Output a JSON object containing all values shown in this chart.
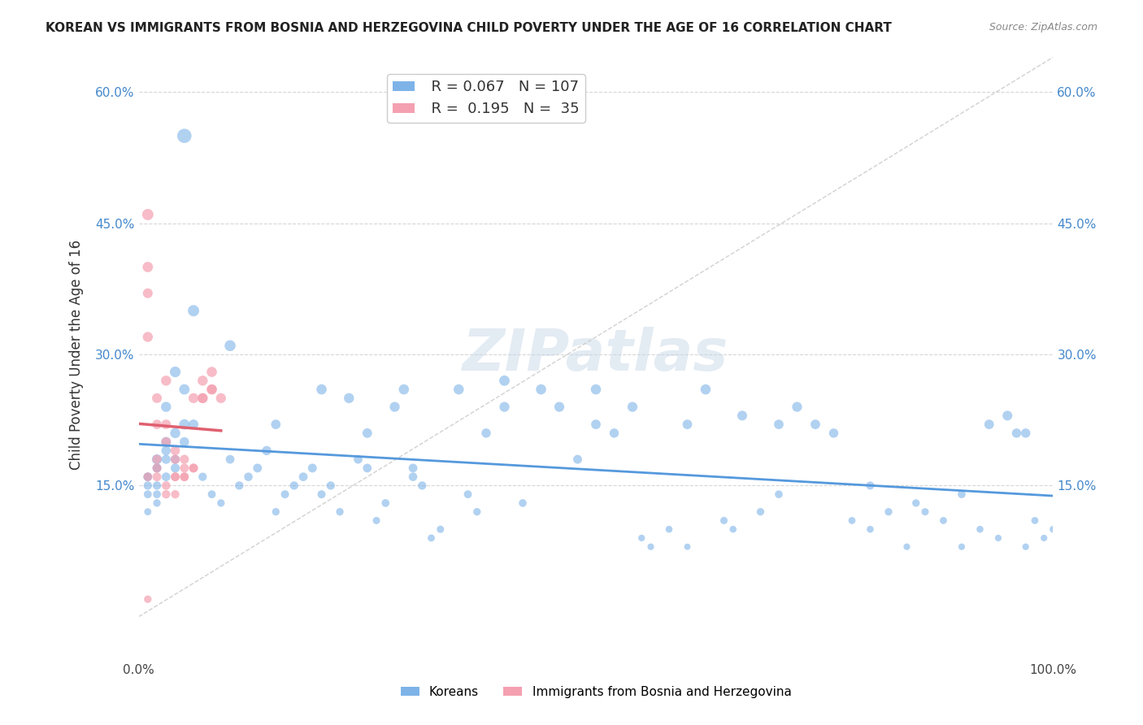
{
  "title": "KOREAN VS IMMIGRANTS FROM BOSNIA AND HERZEGOVINA CHILD POVERTY UNDER THE AGE OF 16 CORRELATION CHART",
  "source": "Source: ZipAtlas.com",
  "xlabel": "",
  "ylabel": "Child Poverty Under the Age of 16",
  "xlim": [
    0,
    1.0
  ],
  "ylim": [
    -0.05,
    0.65
  ],
  "xticks": [
    0.0,
    0.25,
    0.5,
    0.75,
    1.0
  ],
  "xticklabels": [
    "0.0%",
    "",
    "",
    "",
    "100.0%"
  ],
  "yticks": [
    0.15,
    0.3,
    0.45,
    0.6
  ],
  "yticklabels": [
    "15.0%",
    "30.0%",
    "45.0%",
    "60.0%"
  ],
  "korean_R": 0.067,
  "korean_N": 107,
  "bosnian_R": 0.195,
  "bosnian_N": 35,
  "background_color": "#ffffff",
  "grid_color": "#cccccc",
  "watermark": "ZIPatlas",
  "blue_color": "#7EB3E8",
  "pink_color": "#F4A0B0",
  "blue_line_color": "#5599DD",
  "pink_line_color": "#E06070",
  "korean_scatter_x": [
    0.02,
    0.01,
    0.03,
    0.04,
    0.01,
    0.02,
    0.03,
    0.02,
    0.01,
    0.04,
    0.05,
    0.03,
    0.02,
    0.01,
    0.06,
    0.02,
    0.03,
    0.04,
    0.05,
    0.01,
    0.02,
    0.03,
    0.04,
    0.05,
    0.06,
    0.07,
    0.08,
    0.09,
    0.1,
    0.11,
    0.12,
    0.13,
    0.14,
    0.15,
    0.16,
    0.17,
    0.18,
    0.19,
    0.2,
    0.21,
    0.22,
    0.23,
    0.24,
    0.25,
    0.26,
    0.27,
    0.28,
    0.29,
    0.3,
    0.31,
    0.32,
    0.33,
    0.35,
    0.36,
    0.37,
    0.38,
    0.4,
    0.42,
    0.44,
    0.46,
    0.48,
    0.5,
    0.52,
    0.54,
    0.56,
    0.58,
    0.6,
    0.62,
    0.64,
    0.66,
    0.68,
    0.7,
    0.72,
    0.74,
    0.76,
    0.78,
    0.8,
    0.82,
    0.84,
    0.86,
    0.88,
    0.9,
    0.92,
    0.94,
    0.95,
    0.96,
    0.97,
    0.98,
    0.99,
    1.0,
    0.05,
    0.1,
    0.15,
    0.2,
    0.25,
    0.3,
    0.4,
    0.5,
    0.55,
    0.6,
    0.65,
    0.7,
    0.8,
    0.85,
    0.9,
    0.93,
    0.97
  ],
  "korean_scatter_y": [
    0.18,
    0.16,
    0.19,
    0.17,
    0.15,
    0.14,
    0.2,
    0.13,
    0.12,
    0.21,
    0.22,
    0.16,
    0.15,
    0.14,
    0.35,
    0.17,
    0.18,
    0.28,
    0.26,
    0.16,
    0.17,
    0.24,
    0.18,
    0.2,
    0.22,
    0.16,
    0.14,
    0.13,
    0.18,
    0.15,
    0.16,
    0.17,
    0.19,
    0.12,
    0.14,
    0.15,
    0.16,
    0.17,
    0.14,
    0.15,
    0.12,
    0.25,
    0.18,
    0.21,
    0.11,
    0.13,
    0.24,
    0.26,
    0.17,
    0.15,
    0.09,
    0.1,
    0.26,
    0.14,
    0.12,
    0.21,
    0.24,
    0.13,
    0.26,
    0.24,
    0.18,
    0.26,
    0.21,
    0.24,
    0.08,
    0.1,
    0.22,
    0.26,
    0.11,
    0.23,
    0.12,
    0.22,
    0.24,
    0.22,
    0.21,
    0.11,
    0.1,
    0.12,
    0.08,
    0.12,
    0.11,
    0.08,
    0.1,
    0.09,
    0.23,
    0.21,
    0.08,
    0.11,
    0.09,
    0.1,
    0.55,
    0.31,
    0.22,
    0.26,
    0.17,
    0.16,
    0.27,
    0.22,
    0.09,
    0.08,
    0.1,
    0.14,
    0.15,
    0.13,
    0.14,
    0.22,
    0.21
  ],
  "korean_scatter_size": [
    80,
    60,
    70,
    65,
    55,
    50,
    75,
    45,
    40,
    80,
    85,
    60,
    55,
    50,
    100,
    60,
    65,
    90,
    85,
    55,
    60,
    80,
    65,
    70,
    75,
    55,
    50,
    45,
    60,
    55,
    58,
    62,
    68,
    45,
    52,
    55,
    60,
    62,
    52,
    55,
    45,
    80,
    60,
    72,
    42,
    48,
    78,
    82,
    60,
    55,
    40,
    42,
    82,
    50,
    45,
    68,
    78,
    48,
    82,
    78,
    62,
    82,
    68,
    78,
    35,
    38,
    72,
    82,
    42,
    75,
    45,
    72,
    78,
    72,
    68,
    40,
    38,
    45,
    35,
    42,
    40,
    35,
    38,
    35,
    75,
    68,
    35,
    40,
    35,
    38,
    160,
    95,
    72,
    82,
    60,
    58,
    85,
    72,
    35,
    32,
    38,
    48,
    52,
    45,
    48,
    72,
    68
  ],
  "bosnian_scatter_x": [
    0.01,
    0.01,
    0.01,
    0.01,
    0.02,
    0.02,
    0.02,
    0.03,
    0.03,
    0.03,
    0.04,
    0.04,
    0.04,
    0.05,
    0.05,
    0.01,
    0.02,
    0.03,
    0.04,
    0.06,
    0.07,
    0.08,
    0.05,
    0.06,
    0.07,
    0.08,
    0.09,
    0.01,
    0.02,
    0.03,
    0.04,
    0.05,
    0.06,
    0.07,
    0.08
  ],
  "bosnian_scatter_y": [
    0.46,
    0.4,
    0.37,
    0.32,
    0.22,
    0.25,
    0.18,
    0.2,
    0.22,
    0.27,
    0.16,
    0.18,
    0.19,
    0.16,
    0.17,
    0.02,
    0.16,
    0.15,
    0.14,
    0.25,
    0.27,
    0.26,
    0.18,
    0.17,
    0.25,
    0.28,
    0.25,
    0.16,
    0.17,
    0.14,
    0.16,
    0.16,
    0.17,
    0.25,
    0.26
  ],
  "bosnian_scatter_size": [
    100,
    85,
    75,
    80,
    70,
    75,
    65,
    70,
    72,
    80,
    60,
    65,
    68,
    60,
    62,
    45,
    62,
    58,
    55,
    78,
    80,
    78,
    65,
    62,
    78,
    82,
    78,
    60,
    62,
    55,
    60,
    60,
    62,
    78,
    80
  ]
}
